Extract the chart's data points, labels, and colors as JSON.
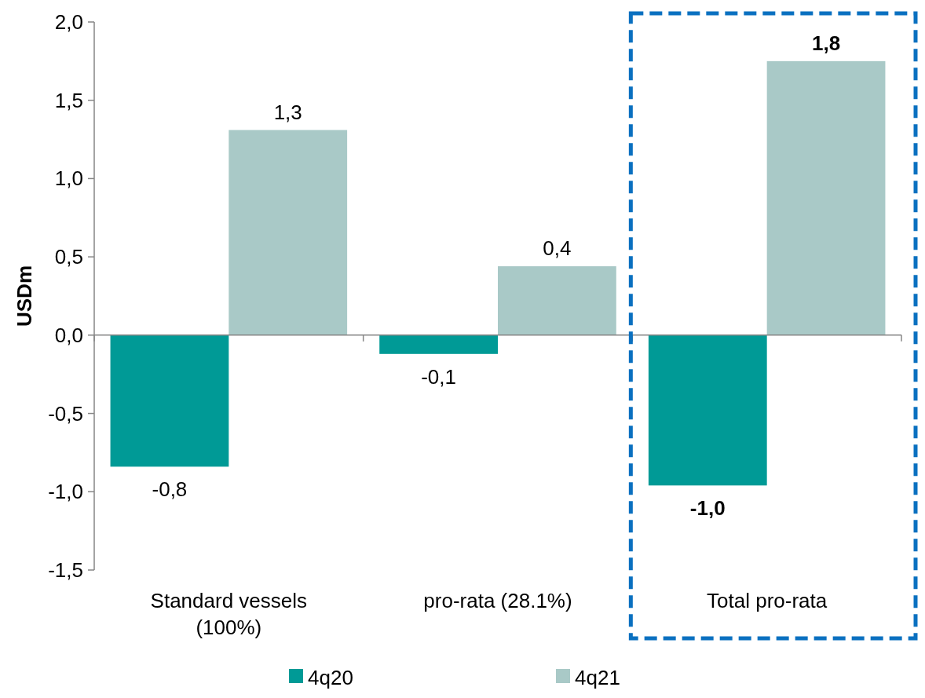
{
  "chart_data": {
    "type": "bar",
    "ylabel": "USDm",
    "categories": [
      "Standard vessels (100%)",
      "pro-rata (28.1%)",
      "Total pro-rata"
    ],
    "series": [
      {
        "name": "4q20",
        "color": "#009a96",
        "values": [
          -0.84,
          -0.12,
          -0.96
        ],
        "value_labels": [
          "-0,8",
          "-0,1",
          "-1,0"
        ]
      },
      {
        "name": "4q21",
        "color": "#a9c9c7",
        "values": [
          1.31,
          0.44,
          1.75
        ],
        "value_labels": [
          "1,3",
          "0,4",
          "1,8"
        ]
      }
    ],
    "ylim": [
      -1.5,
      2.0
    ],
    "yticks": [
      {
        "value": -1.5,
        "label": "-1,5"
      },
      {
        "value": -1.0,
        "label": "-1,0"
      },
      {
        "value": -0.5,
        "label": "-0,5"
      },
      {
        "value": 0,
        "label": "0,0"
      },
      {
        "value": 0.5,
        "label": "0,5"
      },
      {
        "value": 1.0,
        "label": "1,0"
      },
      {
        "value": 1.5,
        "label": "1,5"
      },
      {
        "value": 2.0,
        "label": "2,0"
      }
    ],
    "legend": "bottom"
  }
}
